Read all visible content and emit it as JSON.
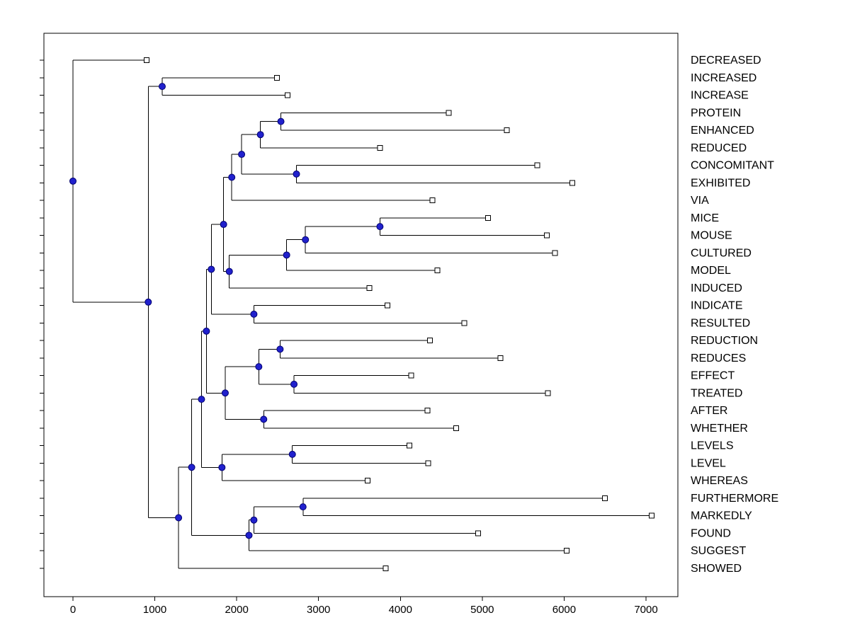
{
  "figure": {
    "background": "#ffffff"
  },
  "chart_data": {
    "type": "dendrogram",
    "orientation": "horizontal",
    "title": "",
    "xlabel": "",
    "ylabel": "",
    "grid": false,
    "x_ticks": [
      0,
      1000,
      2000,
      3000,
      4000,
      5000,
      6000,
      7000
    ],
    "xlim": [
      -355,
      7385
    ],
    "leaf_count": 30,
    "leaf_order": [
      "DECREASED",
      "INCREASED",
      "INCREASE",
      "PROTEIN",
      "ENHANCED",
      "REDUCED",
      "CONCOMITANT",
      "EXHIBITED",
      "VIA",
      "MICE",
      "MOUSE",
      "CULTURED",
      "MODEL",
      "INDUCED",
      "INDICATE",
      "RESULTED",
      "REDUCTION",
      "REDUCES",
      "EFFECT",
      "TREATED",
      "AFTER",
      "WHETHER",
      "LEVELS",
      "LEVEL",
      "WHEREAS",
      "FURTHERMORE",
      "MARKEDLY",
      "FOUND",
      "SUGGEST",
      "SHOWED"
    ],
    "leaf_values": {
      "DECREASED": 900,
      "INCREASED": 2490,
      "INCREASE": 2620,
      "PROTEIN": 4590,
      "ENHANCED": 5300,
      "REDUCED": 3750,
      "CONCOMITANT": 5670,
      "EXHIBITED": 6100,
      "VIA": 4390,
      "MICE": 5070,
      "MOUSE": 5790,
      "CULTURED": 5890,
      "MODEL": 4450,
      "INDUCED": 3620,
      "INDICATE": 3840,
      "RESULTED": 4780,
      "REDUCTION": 4360,
      "REDUCES": 5220,
      "EFFECT": 4130,
      "TREATED": 5800,
      "AFTER": 4330,
      "WHETHER": 4680,
      "LEVELS": 4110,
      "LEVEL": 4340,
      "WHEREAS": 3600,
      "FURTHERMORE": 6500,
      "MARKEDLY": 7070,
      "FOUND": 4950,
      "SUGGEST": 6030,
      "SHOWED": 3820
    },
    "colors": {
      "axis": "#000000",
      "text": "#000000",
      "branch": "#000000",
      "leaf_marker_fill": "#ffffff",
      "leaf_marker_edge": "#000000",
      "internal_node_fill": "#2121cd",
      "internal_node_edge": "#00006e",
      "background": "#ffffff"
    },
    "tree": {
      "v": 0,
      "c": [
        {
          "v": 900,
          "name": "DECREASED"
        },
        {
          "v": 920,
          "c": [
            {
              "v": 1090,
              "c": [
                {
                  "v": 2490,
                  "name": "INCREASED"
                },
                {
                  "v": 2620,
                  "name": "INCREASE"
                }
              ]
            },
            {
              "v": 1290,
              "c": [
                {
                  "v": 1450,
                  "c": [
                    {
                      "v": 1570,
                      "c": [
                        {
                          "v": 1630,
                          "c": [
                            {
                              "v": 1690,
                              "c": [
                                {
                                  "v": 1840,
                                  "c": [
                                    {
                                      "v": 1940,
                                      "c": [
                                        {
                                          "v": 2060,
                                          "c": [
                                            {
                                              "v": 2290,
                                              "c": [
                                                {
                                                  "v": 2540,
                                                  "c": [
                                                    {
                                                      "v": 4590,
                                                      "name": "PROTEIN"
                                                    },
                                                    {
                                                      "v": 5300,
                                                      "name": "ENHANCED"
                                                    }
                                                  ]
                                                },
                                                {
                                                  "v": 3750,
                                                  "name": "REDUCED"
                                                }
                                              ]
                                            },
                                            {
                                              "v": 2730,
                                              "c": [
                                                {
                                                  "v": 5670,
                                                  "name": "CONCOMITANT"
                                                },
                                                {
                                                  "v": 6100,
                                                  "name": "EXHIBITED"
                                                }
                                              ]
                                            }
                                          ]
                                        },
                                        {
                                          "v": 4390,
                                          "name": "VIA"
                                        }
                                      ]
                                    },
                                    {
                                      "v": 1910,
                                      "c": [
                                        {
                                          "v": 2610,
                                          "c": [
                                            {
                                              "v": 2840,
                                              "c": [
                                                {
                                                  "v": 3750,
                                                  "c": [
                                                    {
                                                      "v": 5070,
                                                      "name": "MICE"
                                                    },
                                                    {
                                                      "v": 5790,
                                                      "name": "MOUSE"
                                                    }
                                                  ]
                                                },
                                                {
                                                  "v": 5890,
                                                  "name": "CULTURED"
                                                }
                                              ]
                                            },
                                            {
                                              "v": 4450,
                                              "name": "MODEL"
                                            }
                                          ]
                                        },
                                        {
                                          "v": 3620,
                                          "name": "INDUCED"
                                        }
                                      ]
                                    }
                                  ]
                                },
                                {
                                  "v": 2210,
                                  "c": [
                                    {
                                      "v": 3840,
                                      "name": "INDICATE"
                                    },
                                    {
                                      "v": 4780,
                                      "name": "RESULTED"
                                    }
                                  ]
                                }
                              ]
                            },
                            {
                              "v": 1860,
                              "c": [
                                {
                                  "v": 2270,
                                  "c": [
                                    {
                                      "v": 2530,
                                      "c": [
                                        {
                                          "v": 4360,
                                          "name": "REDUCTION"
                                        },
                                        {
                                          "v": 5220,
                                          "name": "REDUCES"
                                        }
                                      ]
                                    },
                                    {
                                      "v": 2700,
                                      "c": [
                                        {
                                          "v": 4130,
                                          "name": "EFFECT"
                                        },
                                        {
                                          "v": 5800,
                                          "name": "TREATED"
                                        }
                                      ]
                                    }
                                  ]
                                },
                                {
                                  "v": 2330,
                                  "c": [
                                    {
                                      "v": 4330,
                                      "name": "AFTER"
                                    },
                                    {
                                      "v": 4680,
                                      "name": "WHETHER"
                                    }
                                  ]
                                }
                              ]
                            }
                          ]
                        },
                        {
                          "v": 1820,
                          "c": [
                            {
                              "v": 2680,
                              "c": [
                                {
                                  "v": 4110,
                                  "name": "LEVELS"
                                },
                                {
                                  "v": 4340,
                                  "name": "LEVEL"
                                }
                              ]
                            },
                            {
                              "v": 3600,
                              "name": "WHEREAS"
                            }
                          ]
                        }
                      ]
                    },
                    {
                      "v": 2150,
                      "c": [
                        {
                          "v": 2210,
                          "c": [
                            {
                              "v": 2810,
                              "c": [
                                {
                                  "v": 6500,
                                  "name": "FURTHERMORE"
                                },
                                {
                                  "v": 7070,
                                  "name": "MARKEDLY"
                                }
                              ]
                            },
                            {
                              "v": 4950,
                              "name": "FOUND"
                            }
                          ]
                        },
                        {
                          "v": 6030,
                          "name": "SUGGEST"
                        }
                      ]
                    }
                  ]
                },
                {
                  "v": 3820,
                  "name": "SHOWED"
                }
              ]
            }
          ]
        }
      ]
    }
  }
}
